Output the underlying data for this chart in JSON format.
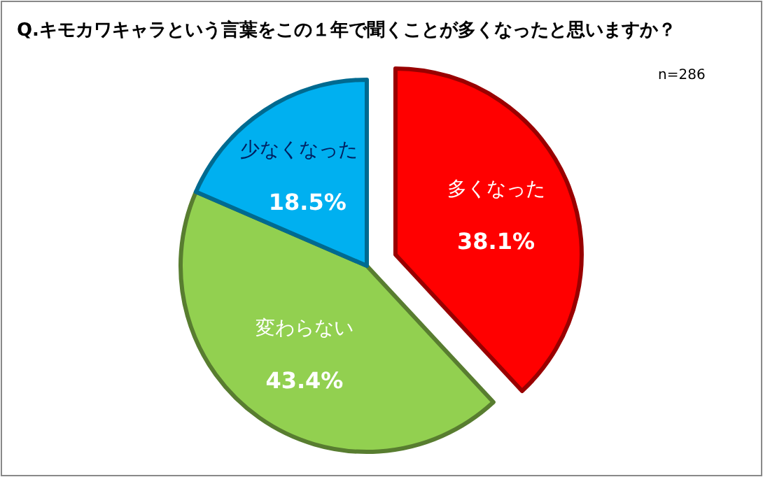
{
  "chart_data": {
    "type": "pie",
    "title": "Q.キモカワキャラという言葉をこの１年で聞くことが多くなったと思いますか？",
    "categories": [
      "多くなった",
      "変わらない",
      "少なくなった"
    ],
    "values": [
      38.1,
      43.4,
      18.5
    ],
    "colors": [
      "#ff0000",
      "#92d050",
      "#00b0f0"
    ],
    "value_labels": [
      "38.1%",
      "43.4%",
      "18.5%"
    ],
    "annotations": [
      "n=286"
    ]
  }
}
